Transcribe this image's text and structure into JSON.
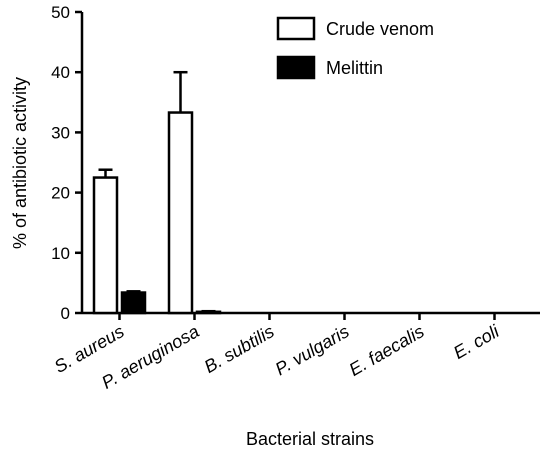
{
  "chart_data": {
    "type": "bar",
    "categories": [
      "S. aureus",
      "P. aeruginosa",
      "B. subtilis",
      "P. vulgaris",
      "E. faecalis",
      "E. coli"
    ],
    "series": [
      {
        "name": "Crude venom",
        "values": [
          22.5,
          33.3,
          0,
          0,
          0,
          0
        ],
        "errors": [
          1.3,
          6.7,
          0,
          0,
          0,
          0
        ],
        "color": "#ffffff"
      },
      {
        "name": "Melittin",
        "values": [
          3.4,
          0.2,
          0,
          0,
          0,
          0
        ],
        "errors": [
          0.2,
          0.1,
          0,
          0,
          0,
          0
        ],
        "color": "#000000"
      }
    ],
    "xlabel": "Bacterial strains",
    "ylabel": "% of antibiotic activity",
    "ylim": [
      0,
      50
    ],
    "yticks": [
      0,
      10,
      20,
      30,
      40,
      50
    ],
    "legend_position": "top-right",
    "grid": false
  }
}
